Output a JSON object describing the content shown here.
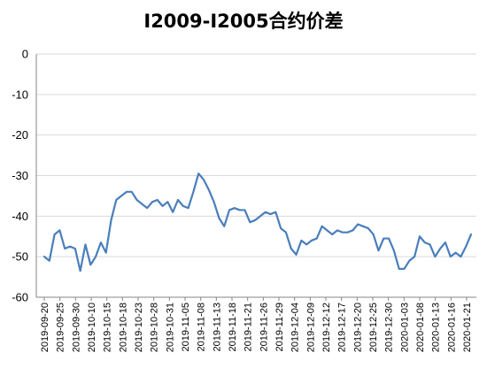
{
  "chart_data": {
    "type": "line",
    "title": "I2009-I2005合约价差",
    "xlabel": "",
    "ylabel": "",
    "ylim": [
      -60,
      0
    ],
    "yticks": [
      0,
      -10,
      -20,
      -30,
      -40,
      -50,
      -60
    ],
    "grid": true,
    "legend": "none",
    "x_tick_labels": [
      "2019-09-20",
      "2019-09-25",
      "2019-09-30",
      "2019-10-10",
      "2019-10-15",
      "2019-10-18",
      "2019-10-23",
      "2019-10-28",
      "2019-10-31",
      "2019-11-05",
      "2019-11-08",
      "2019-11-13",
      "2019-11-18",
      "2019-11-21",
      "2019-11-26",
      "2019-11-29",
      "2019-12-04",
      "2019-12-09",
      "2019-12-12",
      "2019-12-17",
      "2019-12-20",
      "2019-12-25",
      "2019-12-30",
      "2020-01-03",
      "2020-01-08",
      "2020-01-13",
      "2020-01-16",
      "2020-01-21"
    ],
    "series": [
      {
        "color": "#4a7ebb",
        "values": [
          -50,
          -51,
          -44.5,
          -43.5,
          -48,
          -47.5,
          -48,
          -53.5,
          -47,
          -52,
          -50,
          -46.5,
          -49,
          -41,
          -36,
          -35,
          -34,
          -34,
          -36,
          -37,
          -38,
          -36.5,
          -36,
          -37.5,
          -36.5,
          -39,
          -36,
          -37.5,
          -38,
          -34,
          -29.5,
          -31,
          -33.5,
          -36.5,
          -40.5,
          -42.5,
          -38.5,
          -38,
          -38.5,
          -38.5,
          -41.5,
          -41,
          -40,
          -39,
          -39.5,
          -39,
          -43,
          -44,
          -48,
          -49.5,
          -46,
          -47,
          -46,
          -45.5,
          -42.5,
          -43.5,
          -44.5,
          -43.5,
          -44,
          -44,
          -43.5,
          -42,
          -42.5,
          -43,
          -44.5,
          -48.5,
          -45.5,
          -45.5,
          -48.5,
          -53,
          -53,
          -51,
          -50,
          -45,
          -46.5,
          -47,
          -50,
          -48,
          -46.5,
          -50,
          -49,
          -50,
          -47.5,
          -44.5
        ]
      }
    ],
    "colors": {
      "grid": "#d9d9d9",
      "axis": "#868686",
      "line": "#4a7ebb"
    }
  }
}
